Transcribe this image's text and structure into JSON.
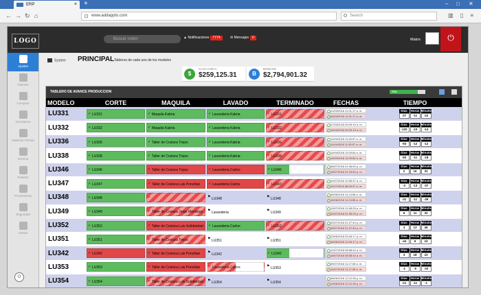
{
  "browser": {
    "tab_title": "ERP",
    "url": "www.addappto.com",
    "search_placeholder": "Search"
  },
  "header": {
    "logo": "LOGO",
    "search_placeholder": "Buscar orden",
    "notifications_label": "Notificaciones",
    "notifications_count": "7774",
    "messages_label": "Mensajes",
    "messages_count": "0",
    "user_name": "Matrix"
  },
  "sidebar": {
    "items": [
      {
        "label": "Ajustes",
        "icon": "gear-icon",
        "active": true
      },
      {
        "label": "Clientes",
        "icon": "book-icon"
      },
      {
        "label": "Compras",
        "icon": "cart-icon"
      },
      {
        "label": "Inventarios",
        "icon": "boxes-icon"
      },
      {
        "label": "Materias Primas",
        "icon": "pin-icon"
      },
      {
        "label": "Nomina",
        "icon": "user-icon"
      },
      {
        "label": "Pedidos",
        "icon": "building-icon"
      },
      {
        "label": "Proveedores",
        "icon": "truck-icon"
      },
      {
        "label": "Seguridad",
        "icon": "lock-icon"
      },
      {
        "label": "Ventas",
        "icon": "briefcase-icon"
      }
    ]
  },
  "page": {
    "breadcrumb": "System",
    "title": "PRINCIPAL",
    "subtitle": "Tableros de cada uno de los modulos"
  },
  "cards": [
    {
      "label": "CAJA CHICA",
      "value": "$259,125.31",
      "icon": "$",
      "color": "#3aa63a"
    },
    {
      "label": "BANCOS",
      "value": "$2,794,901.32",
      "icon": "B",
      "color": "#2d7fd6"
    }
  ],
  "panel": {
    "title": "TABLERO DE AVANCE PRODUCCION",
    "progress_label": "79%",
    "progress": 0.79
  },
  "table": {
    "headers": [
      "MODELO",
      "CORTE",
      "MAQUILA",
      "LAVADO",
      "TERMINADO",
      "FECHAS",
      "TIEMPO"
    ],
    "time_headers": [
      "Dias",
      "Horas",
      "Minutos"
    ],
    "rows": [
      {
        "model": "LU331",
        "corte": "LU331",
        "corte_s": "green",
        "maquila": "Maquila Kabria",
        "maquila_s": "green",
        "lavado": "Lavanderia Kabria",
        "lavado_s": "green",
        "term": "LU331",
        "term_s": "stripe",
        "d1": "21/03/2018 11:31:17 a. m.",
        "d2": "04/03/2018 11:31:17 a. m.",
        "dias": "-27",
        "horas": "-11",
        "min": "-22"
      },
      {
        "model": "LU332",
        "corte": "LU332",
        "corte_s": "green",
        "maquila": "Maquila Kabria",
        "maquila_s": "green",
        "lavado": "Lavanderia Kabria",
        "lavado_s": "green",
        "term": "LU332",
        "term_s": "stripe",
        "d1": "07/03/2018 09:29:19 a. m.",
        "d2": "15/03/2018 09:29:19 a. m.",
        "dias": "-120",
        "horas": "-10",
        "min": "-14"
      },
      {
        "model": "LU336",
        "corte": "LU336",
        "corte_s": "green",
        "maquila": "Taller de Costura Trejos",
        "maquila_s": "green",
        "lavado": "Lavanderia Kabria",
        "lavado_s": "green",
        "term": "LU336",
        "term_s": "stripe",
        "d1": "14/04/2018 11:30:57 a. m.",
        "d2": "11/04/2018 11:30:57 a. m.",
        "dias": "-93",
        "horas": "-12",
        "min": "-12"
      },
      {
        "model": "LU338",
        "corte": "LU338",
        "corte_s": "green",
        "maquila": "Taller de Costura Trejos",
        "maquila_s": "green",
        "lavado": "Lavanderia Kabria",
        "lavado_s": "green",
        "term": "LU338",
        "term_s": "stripe",
        "d1": "14/04/2018 11:09:54 a. m.",
        "d2": "14/04/2018 11:09:54 a. m.",
        "dias": "-93",
        "horas": "-11",
        "min": "-18"
      },
      {
        "model": "LU346",
        "corte": "LU346",
        "corte_s": "green",
        "maquila": "Taller de Costura Trejos",
        "maquila_s": "red",
        "lavado": "Lavanderia Carlos",
        "lavado_s": "red",
        "term": "LU346",
        "term_s": "half2",
        "d1": "08/07/2018 01:46:50 p. m.",
        "d2": "15/07/2018 01:15:50 p. m.",
        "dias": "2",
        "horas": "16",
        "min": "33"
      },
      {
        "model": "LU347",
        "corte": "LU347",
        "corte_s": "green",
        "maquila": "Taller de Costura Luis Poncitlan",
        "maquila_s": "red",
        "lavado": "Lavanderia Carlos",
        "lavado_s": "red",
        "term": "LU347",
        "term_s": "stripe",
        "d1": "04/07/2018 10:05:37 a. m.",
        "d2": "11/07/2018 08:05:37 a. m.",
        "dias": "-3",
        "horas": "-13",
        "min": "-37"
      },
      {
        "model": "LU348",
        "corte": "LU348",
        "corte_s": "green",
        "maquila": "",
        "maquila_s": "stripe",
        "lavado": "LU348",
        "lavado_s": "plain",
        "term": "LU348",
        "term_s": "plain",
        "d1": "05/06/2018 11:24:58 a. m.",
        "d2": "15/06/2018 11:24:58 a. m.",
        "dias": "-31",
        "horas": "-11",
        "min": "-39"
      },
      {
        "model": "LU349",
        "corte": "LU349",
        "corte_s": "green",
        "maquila": "Taller de Costura Jorge Mendoza",
        "maquila_s": "stripe",
        "lavado": "Lavanderia",
        "lavado_s": "plain",
        "term": "LU349",
        "term_s": "plain",
        "d1": "13/07/2018 12:45:25 p. m.",
        "d2": "20/07/2018 01:35:25 p. m.",
        "dias": "6",
        "horas": "11",
        "min": "32"
      },
      {
        "model": "LU352",
        "corte": "LU352",
        "corte_s": "green",
        "maquila": "Taller de Costura Luis Solidaridad",
        "maquila_s": "red",
        "lavado": "Lavanderia Carlos",
        "lavado_s": "green",
        "term": "LU352",
        "term_s": "stripe",
        "d1": "02/07/2018 01:27:40 p. m.",
        "d2": "05/07/2018 01:37:40 p. m.",
        "dias": "4",
        "horas": "13",
        "min": "46"
      },
      {
        "model": "LU351",
        "corte": "LU351",
        "corte_s": "green",
        "maquila": "Taller de Costura Trejos",
        "maquila_s": "stripe",
        "lavado": "LU351",
        "lavado_s": "plain",
        "term": "LU351",
        "term_s": "plain",
        "d1": "23/05/2018 03:49:17 p. m.",
        "d2": "30/05/2018 10:34:17 p. m.",
        "dias": "-44",
        "horas": "6",
        "min": "24"
      },
      {
        "model": "LU342",
        "corte": "LU342",
        "corte_s": "red",
        "maquila": "Taller de Costura Luis Poncitlan",
        "maquila_s": "red",
        "lavado": "LU342",
        "lavado_s": "plain",
        "term": "LU342",
        "term_s": "half2",
        "d1": "12/07/2018 08:08:44 a. m.",
        "d2": "18/07/2018 08:08:44 a. m.",
        "dias": "3",
        "horas": "18",
        "min": "23"
      },
      {
        "model": "LU353",
        "corte": "LU353",
        "corte_s": "green",
        "maquila": "Taller de Costura Luis Poncitlan",
        "maquila_s": "red",
        "lavado": "Lavanderia Carlos",
        "lavado_s": "halfstripe",
        "term": "LU353",
        "term_s": "plain",
        "d1": "09/07/2018 11:17:08 a. m.",
        "d2": "14/07/2018 11:17:08 a. m.",
        "dias": "-1",
        "horas": "-5",
        "min": "-32"
      },
      {
        "model": "LU354",
        "corte": "LU354",
        "corte_s": "green",
        "maquila": "Taller de Costura Luis Solidaridad",
        "maquila_s": "stripe",
        "lavado": "LU354",
        "lavado_s": "plain",
        "term": "LU354",
        "term_s": "plain",
        "d1": "08/06/2018 12:12:35 p. m.",
        "d2": "13/06/2018 12:12:35 p. m.",
        "dias": "-21",
        "horas": "-11",
        "min": "-1"
      }
    ]
  }
}
